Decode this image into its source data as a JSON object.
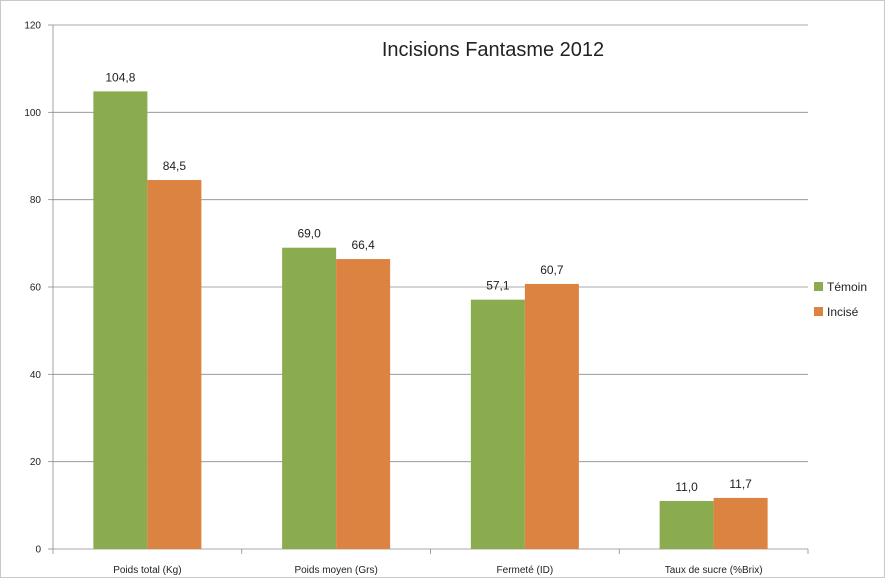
{
  "chart_data": {
    "type": "bar",
    "title": "Incisions Fantasme 2012",
    "categories": [
      "Poids total  (Kg)",
      "Poids moyen (Grs)",
      "Fermeté (ID)",
      "Taux de sucre (%Brix)"
    ],
    "series": [
      {
        "name": "Témoin",
        "color": "#8aab4e",
        "values": [
          104.8,
          69.0,
          57.1,
          11.0
        ],
        "labels": [
          "104,8",
          "69,0",
          "57,1",
          "11,0"
        ]
      },
      {
        "name": "Incisé",
        "color": "#dd8341",
        "values": [
          84.5,
          66.4,
          60.7,
          11.7
        ],
        "labels": [
          "84,5",
          "66,4",
          "60,7",
          "11,7"
        ]
      }
    ],
    "ylim": [
      0,
      120
    ],
    "yticks": [
      0,
      20,
      40,
      60,
      80,
      100,
      120
    ],
    "xlabel": "",
    "ylabel": "",
    "grid": true,
    "legend": "right"
  }
}
